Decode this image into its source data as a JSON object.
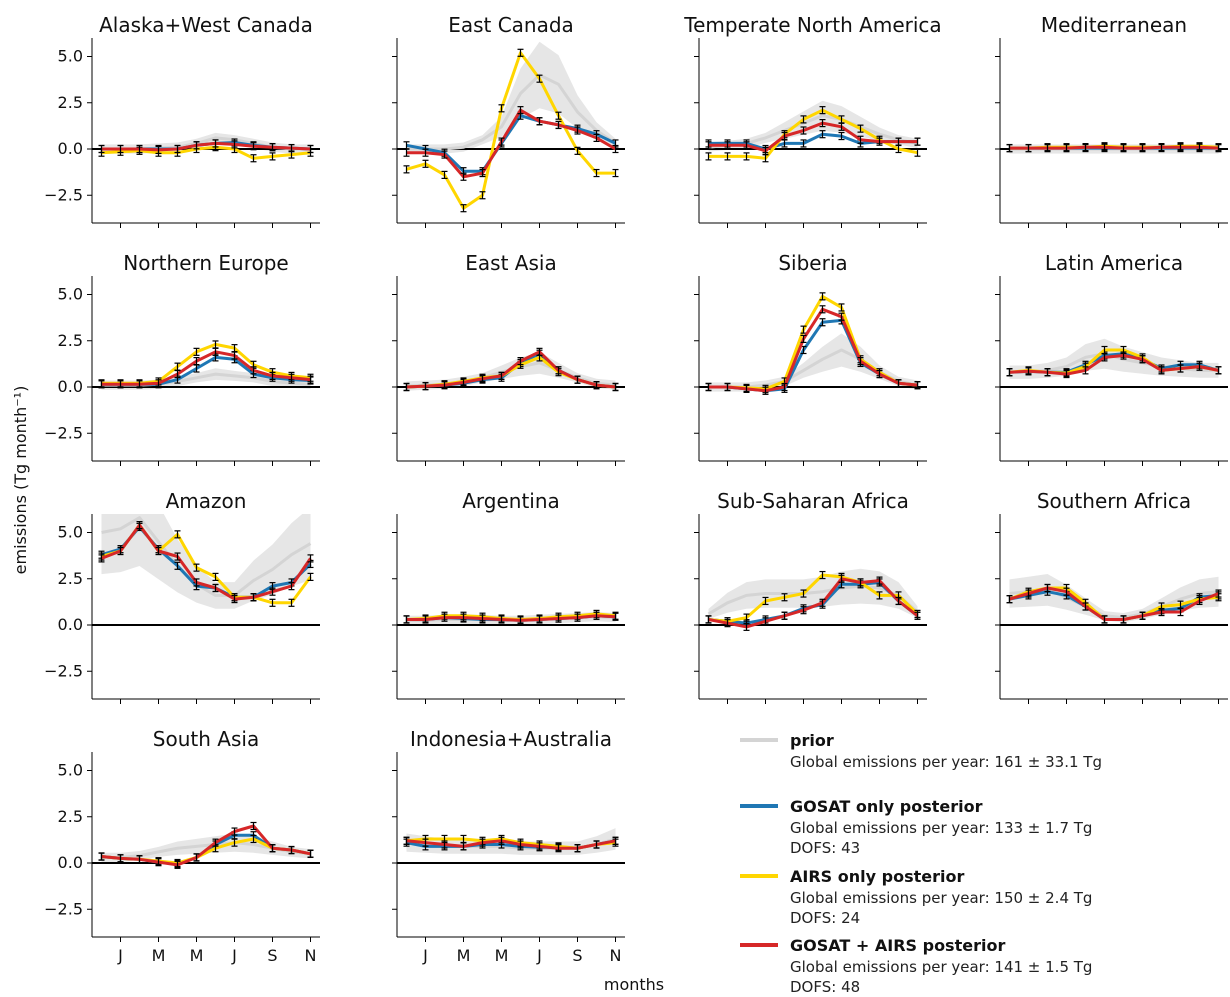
{
  "chart_data": {
    "type": "line",
    "ylabel": "emissions (Tg month⁻¹)",
    "xlabel": "months",
    "ylim": [
      -4,
      6
    ],
    "yticks": [
      -2.5,
      0.0,
      2.5,
      5.0
    ],
    "ytick_labels": [
      "−2.5",
      "0.0",
      "2.5",
      "5.0"
    ],
    "x": [
      1,
      2,
      3,
      4,
      5,
      6,
      7,
      8,
      9,
      10,
      11,
      12
    ],
    "xtick_positions": [
      2,
      4,
      6,
      8,
      10,
      12
    ],
    "xtick_labels": [
      "J",
      "M",
      "M",
      "J",
      "S",
      "N"
    ],
    "series_styles": [
      {
        "key": "prior",
        "color": "#d4d4d4"
      },
      {
        "key": "gosat",
        "color": "#1f77b4"
      },
      {
        "key": "airs",
        "color": "#ffd600"
      },
      {
        "key": "joint",
        "color": "#d62728"
      }
    ],
    "legend": [
      {
        "key": "prior",
        "name": "prior",
        "emissions": "Global emissions per year: 161 ± 33.1 Tg",
        "dofs": ""
      },
      {
        "key": "gosat",
        "name": "GOSAT only posterior",
        "emissions": "Global emissions per year: 133 ± 1.7 Tg",
        "dofs": "DOFS: 43"
      },
      {
        "key": "airs",
        "name": "AIRS only posterior",
        "emissions": "Global emissions per year: 150 ± 2.4 Tg",
        "dofs": "DOFS: 24"
      },
      {
        "key": "joint",
        "name": "GOSAT + AIRS posterior",
        "emissions": "Global emissions per year: 141 ± 1.5 Tg",
        "dofs": "DOFS: 48"
      }
    ],
    "panels": [
      {
        "title": "Alaska+West Canada",
        "prior": [
          0.0,
          0.0,
          0.0,
          0.05,
          0.1,
          0.3,
          0.6,
          0.5,
          0.3,
          0.1,
          0.0,
          0.0
        ],
        "gosat": [
          0.0,
          0.0,
          0.0,
          0.0,
          0.0,
          0.2,
          0.3,
          0.35,
          0.2,
          0.1,
          0.05,
          0.0
        ],
        "airs": [
          -0.2,
          -0.15,
          -0.1,
          -0.2,
          -0.2,
          0.0,
          0.1,
          0.0,
          -0.5,
          -0.4,
          -0.3,
          -0.2
        ],
        "joint": [
          0.0,
          0.0,
          0.0,
          -0.05,
          0.0,
          0.2,
          0.3,
          0.25,
          0.15,
          0.1,
          0.05,
          0.0
        ]
      },
      {
        "title": "East Canada",
        "prior": [
          0.0,
          0.0,
          0.0,
          0.1,
          0.5,
          1.2,
          3.0,
          4.0,
          3.5,
          2.0,
          1.0,
          0.3
        ],
        "gosat": [
          0.2,
          0.0,
          -0.2,
          -1.2,
          -1.2,
          0.3,
          1.8,
          1.5,
          1.3,
          1.1,
          0.8,
          0.3
        ],
        "airs": [
          -1.1,
          -0.8,
          -1.4,
          -3.2,
          -2.5,
          2.2,
          5.2,
          3.8,
          1.8,
          -0.1,
          -1.3,
          -1.3
        ],
        "joint": [
          -0.2,
          -0.2,
          -0.3,
          -1.5,
          -1.3,
          0.4,
          2.1,
          1.5,
          1.3,
          1.0,
          0.6,
          0.0
        ]
      },
      {
        "title": "Temperate North America",
        "prior": [
          0.1,
          0.2,
          0.3,
          0.6,
          1.0,
          1.4,
          1.8,
          1.6,
          1.2,
          0.8,
          0.5,
          0.3
        ],
        "gosat": [
          0.3,
          0.3,
          0.3,
          0.0,
          0.3,
          0.3,
          0.8,
          0.7,
          0.3,
          0.4,
          0.4,
          0.4
        ],
        "airs": [
          -0.4,
          -0.4,
          -0.4,
          -0.5,
          0.8,
          1.6,
          2.1,
          1.6,
          1.1,
          0.5,
          0.0,
          -0.2
        ],
        "joint": [
          0.2,
          0.2,
          0.2,
          -0.1,
          0.7,
          1.0,
          1.4,
          1.2,
          0.5,
          0.4,
          0.4,
          0.4
        ]
      },
      {
        "title": "Mediterranean",
        "prior": [
          0.0,
          0.0,
          0.0,
          0.0,
          0.0,
          0.0,
          0.0,
          0.0,
          0.0,
          0.0,
          0.0,
          0.0
        ],
        "gosat": [
          0.05,
          0.05,
          0.05,
          0.05,
          0.05,
          0.05,
          0.05,
          0.05,
          0.05,
          0.05,
          0.05,
          0.05
        ],
        "airs": [
          0.05,
          0.05,
          0.1,
          0.1,
          0.1,
          0.15,
          0.1,
          0.1,
          0.1,
          0.15,
          0.15,
          0.1
        ],
        "joint": [
          0.05,
          0.05,
          0.05,
          0.05,
          0.1,
          0.1,
          0.05,
          0.05,
          0.1,
          0.1,
          0.1,
          0.05
        ]
      },
      {
        "title": "Northern Europe",
        "prior": [
          0.1,
          0.1,
          0.1,
          0.15,
          0.3,
          0.5,
          0.7,
          0.6,
          0.5,
          0.3,
          0.2,
          0.15
        ],
        "gosat": [
          0.15,
          0.15,
          0.15,
          0.15,
          0.4,
          1.0,
          1.6,
          1.5,
          0.7,
          0.5,
          0.4,
          0.35
        ],
        "airs": [
          0.2,
          0.2,
          0.2,
          0.3,
          1.1,
          1.9,
          2.3,
          2.1,
          1.2,
          0.8,
          0.6,
          0.5
        ],
        "joint": [
          0.15,
          0.15,
          0.15,
          0.2,
          0.7,
          1.4,
          1.9,
          1.7,
          0.9,
          0.6,
          0.5,
          0.4
        ]
      },
      {
        "title": "East Asia",
        "prior": [
          0.05,
          0.1,
          0.15,
          0.3,
          0.5,
          0.8,
          1.1,
          1.3,
          0.9,
          0.5,
          0.2,
          0.1
        ],
        "gosat": [
          0.0,
          0.05,
          0.1,
          0.2,
          0.4,
          0.5,
          1.3,
          1.8,
          0.9,
          0.4,
          0.1,
          0.0
        ],
        "airs": [
          0.0,
          0.05,
          0.15,
          0.3,
          0.5,
          0.6,
          1.2,
          1.6,
          0.8,
          0.4,
          0.1,
          0.0
        ],
        "joint": [
          0.0,
          0.05,
          0.1,
          0.25,
          0.45,
          0.6,
          1.4,
          1.9,
          0.9,
          0.4,
          0.1,
          0.0
        ]
      },
      {
        "title": "Siberia",
        "prior": [
          0.0,
          0.0,
          0.0,
          0.1,
          0.3,
          0.9,
          1.5,
          2.0,
          1.5,
          0.8,
          0.3,
          0.1
        ],
        "gosat": [
          0.0,
          0.0,
          -0.1,
          -0.2,
          -0.1,
          2.0,
          3.5,
          3.6,
          1.3,
          0.7,
          0.2,
          0.1
        ],
        "airs": [
          0.0,
          0.0,
          -0.05,
          -0.1,
          0.3,
          3.1,
          4.9,
          4.3,
          1.5,
          0.8,
          0.2,
          0.1
        ],
        "joint": [
          0.0,
          0.0,
          -0.1,
          -0.2,
          0.0,
          2.6,
          4.2,
          3.8,
          1.4,
          0.7,
          0.2,
          0.1
        ]
      },
      {
        "title": "Latin America",
        "prior": [
          0.8,
          0.8,
          0.9,
          1.1,
          1.6,
          1.8,
          1.5,
          1.3,
          1.1,
          1.0,
          0.9,
          0.9
        ],
        "gosat": [
          0.8,
          0.85,
          0.8,
          0.8,
          1.2,
          1.7,
          1.8,
          1.5,
          1.0,
          1.2,
          1.2,
          0.9
        ],
        "airs": [
          0.8,
          0.9,
          0.8,
          0.75,
          1.1,
          2.0,
          2.0,
          1.6,
          0.9,
          1.0,
          1.1,
          0.9
        ],
        "joint": [
          0.8,
          0.85,
          0.8,
          0.7,
          0.9,
          1.6,
          1.7,
          1.5,
          0.9,
          1.0,
          1.1,
          0.9
        ]
      },
      {
        "title": "Amazon",
        "prior": [
          5.0,
          5.2,
          5.8,
          4.5,
          3.2,
          2.2,
          1.6,
          1.6,
          2.4,
          3.0,
          3.8,
          4.4
        ],
        "gosat": [
          3.8,
          4.1,
          5.3,
          4.1,
          3.2,
          2.1,
          2.0,
          1.5,
          1.5,
          2.1,
          2.3,
          3.3
        ],
        "airs": [
          3.7,
          4.0,
          5.4,
          4.0,
          4.9,
          3.1,
          2.6,
          1.5,
          1.5,
          1.2,
          1.2,
          2.6
        ],
        "joint": [
          3.6,
          4.0,
          5.4,
          4.0,
          3.7,
          2.3,
          2.0,
          1.4,
          1.5,
          1.8,
          2.1,
          3.6
        ]
      },
      {
        "title": "Argentina",
        "prior": [
          0.25,
          0.25,
          0.3,
          0.3,
          0.3,
          0.25,
          0.25,
          0.3,
          0.35,
          0.4,
          0.45,
          0.4
        ],
        "gosat": [
          0.3,
          0.3,
          0.4,
          0.35,
          0.3,
          0.3,
          0.25,
          0.3,
          0.35,
          0.4,
          0.5,
          0.45
        ],
        "airs": [
          0.3,
          0.35,
          0.5,
          0.5,
          0.45,
          0.35,
          0.3,
          0.35,
          0.45,
          0.5,
          0.6,
          0.5
        ],
        "joint": [
          0.3,
          0.3,
          0.4,
          0.4,
          0.35,
          0.3,
          0.25,
          0.3,
          0.35,
          0.4,
          0.5,
          0.45
        ]
      },
      {
        "title": "Sub-Saharan Africa",
        "prior": [
          0.6,
          1.2,
          1.6,
          1.7,
          1.7,
          1.7,
          1.8,
          2.0,
          2.1,
          2.0,
          1.6,
          0.7
        ],
        "gosat": [
          0.3,
          0.2,
          0.1,
          0.3,
          0.5,
          0.9,
          1.1,
          2.2,
          2.2,
          2.3,
          1.3,
          0.5
        ],
        "airs": [
          0.3,
          0.2,
          0.4,
          1.3,
          1.5,
          1.7,
          2.7,
          2.6,
          2.3,
          1.6,
          1.6,
          0.6
        ],
        "joint": [
          0.3,
          0.1,
          -0.1,
          0.2,
          0.5,
          0.8,
          1.2,
          2.5,
          2.3,
          2.4,
          1.3,
          0.5
        ]
      },
      {
        "title": "Southern Africa",
        "prior": [
          1.7,
          1.8,
          1.9,
          1.5,
          1.0,
          0.5,
          0.4,
          0.6,
          1.0,
          1.4,
          1.7,
          1.8
        ],
        "gosat": [
          1.4,
          1.6,
          1.8,
          1.6,
          1.0,
          0.3,
          0.3,
          0.5,
          0.8,
          0.9,
          1.5,
          1.6
        ],
        "airs": [
          1.4,
          1.8,
          2.0,
          2.0,
          1.2,
          0.3,
          0.3,
          0.5,
          1.0,
          1.1,
          1.4,
          1.5
        ],
        "joint": [
          1.4,
          1.7,
          2.0,
          1.8,
          1.0,
          0.3,
          0.3,
          0.5,
          0.7,
          0.7,
          1.3,
          1.7
        ]
      },
      {
        "title": "South Asia",
        "prior": [
          0.3,
          0.3,
          0.4,
          0.6,
          0.8,
          0.9,
          1.0,
          1.1,
          1.0,
          0.8,
          0.6,
          0.5
        ],
        "gosat": [
          0.35,
          0.25,
          0.2,
          0.05,
          -0.05,
          0.3,
          1.0,
          1.5,
          1.5,
          0.8,
          0.7,
          0.5
        ],
        "airs": [
          0.35,
          0.25,
          0.2,
          0.1,
          0.0,
          0.3,
          0.8,
          1.1,
          1.3,
          0.8,
          0.7,
          0.5
        ],
        "joint": [
          0.35,
          0.25,
          0.2,
          0.05,
          -0.1,
          0.3,
          1.1,
          1.7,
          2.0,
          0.8,
          0.7,
          0.5
        ]
      },
      {
        "title": "Indonesia+Australia",
        "prior": [
          1.1,
          1.0,
          0.9,
          0.9,
          0.9,
          0.9,
          0.8,
          0.8,
          0.8,
          0.8,
          1.0,
          1.3
        ],
        "gosat": [
          1.1,
          0.9,
          0.9,
          0.9,
          1.0,
          1.0,
          0.9,
          0.85,
          0.85,
          0.8,
          1.0,
          1.2
        ],
        "airs": [
          1.2,
          1.3,
          1.3,
          1.3,
          1.2,
          1.3,
          1.1,
          1.0,
          0.9,
          0.8,
          1.0,
          1.1
        ],
        "joint": [
          1.2,
          1.1,
          1.0,
          0.9,
          1.1,
          1.2,
          1.0,
          0.9,
          0.8,
          0.8,
          1.0,
          1.2
        ]
      }
    ]
  }
}
